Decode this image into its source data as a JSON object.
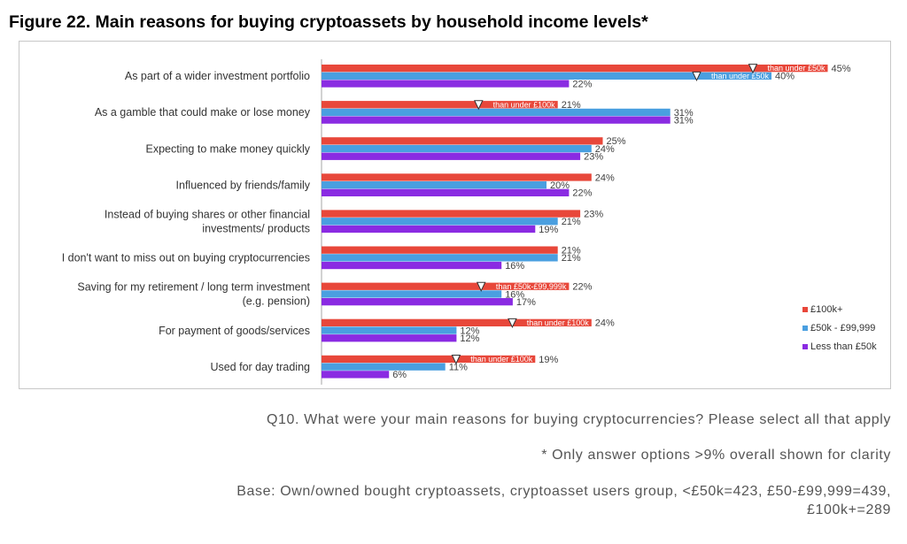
{
  "title": "Figure 22. Main reasons for buying cryptoassets by household income levels*",
  "chart_data": {
    "type": "bar",
    "orientation": "horizontal",
    "xlim": [
      0,
      50
    ],
    "categories": [
      [
        "As part of a wider investment portfolio"
      ],
      [
        "As a gamble that could make or lose money"
      ],
      [
        "Expecting to make money quickly"
      ],
      [
        "Influenced by friends/family"
      ],
      [
        "Instead of buying shares or other financial",
        "investments/ products"
      ],
      [
        "I don't want to miss out on buying cryptocurrencies"
      ],
      [
        "Saving for my retirement / long term investment",
        "(e.g. pension)"
      ],
      [
        "For payment of goods/services"
      ],
      [
        "Used for day trading"
      ]
    ],
    "series": [
      {
        "name": "£100k+",
        "color": "#e8473a",
        "values": [
          45,
          21,
          25,
          24,
          23,
          21,
          22,
          24,
          19
        ]
      },
      {
        "name": "£50k - £99,999",
        "color": "#4a9fe0",
        "values": [
          40,
          31,
          24,
          20,
          21,
          21,
          16,
          12,
          11
        ]
      },
      {
        "name": "Less than £50k",
        "color": "#8a2be2",
        "values": [
          22,
          31,
          23,
          22,
          19,
          16,
          17,
          12,
          6
        ]
      }
    ],
    "annotations": [
      {
        "category": 0,
        "series": 0,
        "text": "than under £50k"
      },
      {
        "category": 0,
        "series": 1,
        "text": "than under £50k"
      },
      {
        "category": 1,
        "series": 0,
        "text": "than under £100k"
      },
      {
        "category": 6,
        "series": 0,
        "text": "than £50k-£99,999k"
      },
      {
        "category": 7,
        "series": 0,
        "text": "than under £100k"
      },
      {
        "category": 8,
        "series": 0,
        "text": "than under £100k"
      }
    ],
    "legend": "right"
  },
  "notes": {
    "question": "Q10. What were your main reasons for buying cryptocurrencies? Please select all that apply",
    "clarity": "* Only answer options >9% overall shown for clarity",
    "base_line1": "Base: Own/owned bought cryptoassets, cryptoasset users group, <£50k=423, £50-£99,999=439,",
    "base_line2": "£100k+=289"
  }
}
